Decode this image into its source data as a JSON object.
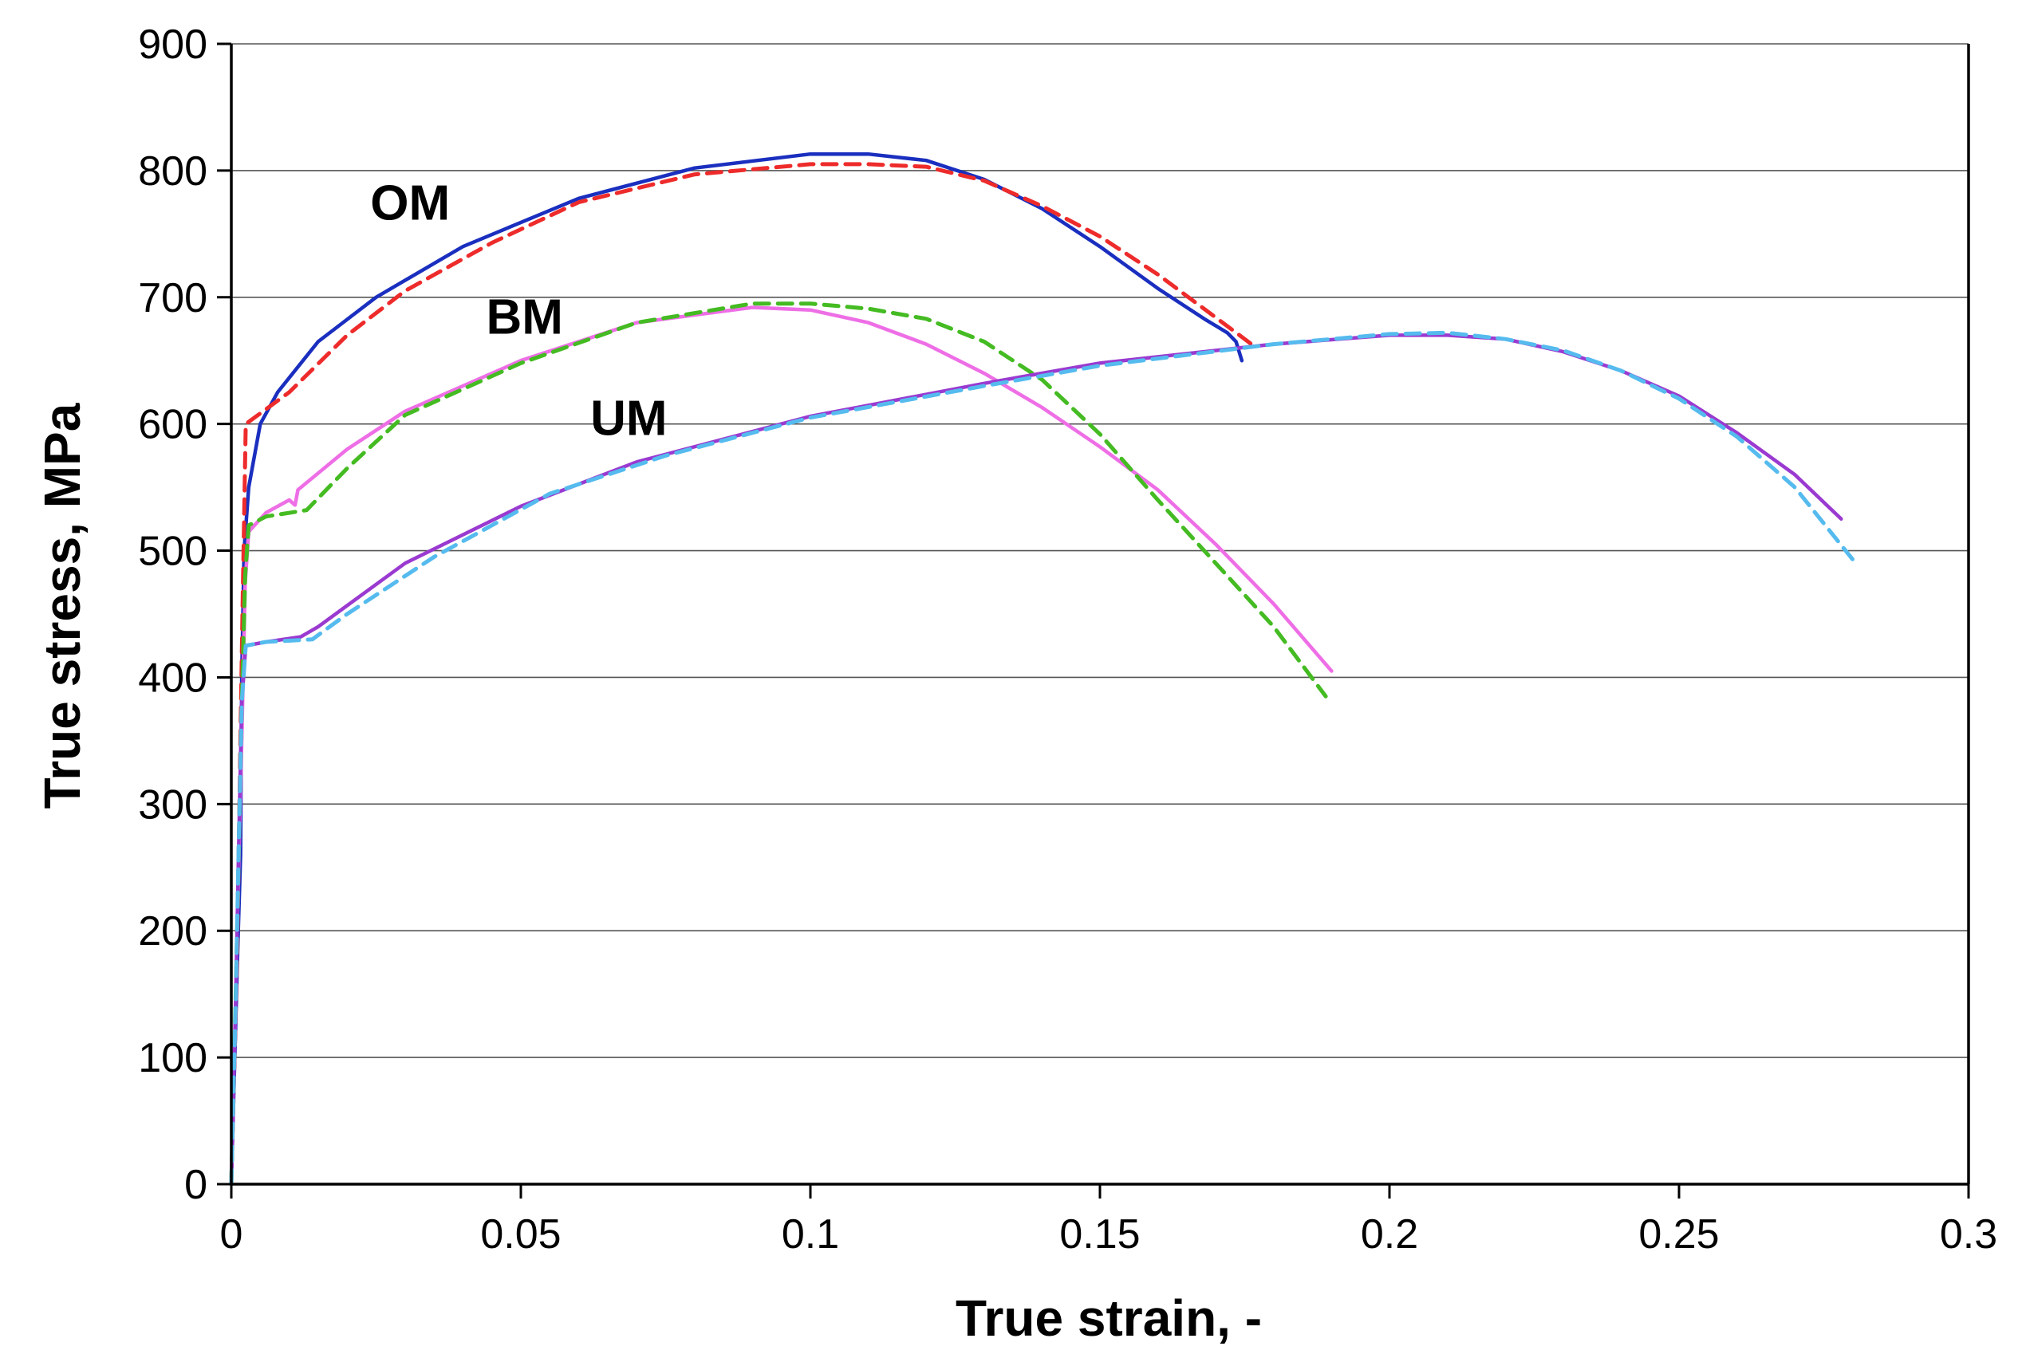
{
  "chart_data": {
    "type": "line",
    "title": "",
    "xlabel": "True strain, -",
    "ylabel": "True stress, MPa",
    "xlim": [
      0,
      0.3
    ],
    "ylim": [
      0,
      900
    ],
    "xticks": [
      0,
      0.05,
      0.1,
      0.15,
      0.2,
      0.25,
      0.3
    ],
    "xtick_labels": [
      "0",
      "0.05",
      "0.1",
      "0.15",
      "0.2",
      "0.25",
      "0.3"
    ],
    "yticks": [
      0,
      100,
      200,
      300,
      400,
      500,
      600,
      700,
      800,
      900
    ],
    "ytick_labels": [
      "0",
      "100",
      "200",
      "300",
      "400",
      "500",
      "600",
      "700",
      "800",
      "900"
    ],
    "grid": "horizontal",
    "legend": "none",
    "annotations": [
      {
        "text": "OM",
        "x": 0.024,
        "y": 775
      },
      {
        "text": "BM",
        "x": 0.044,
        "y": 685
      },
      {
        "text": "UM",
        "x": 0.062,
        "y": 605
      }
    ],
    "series": [
      {
        "group": "OM",
        "color": "#1a2fbf",
        "style": "solid",
        "points": [
          [
            0,
            0
          ],
          [
            0.0012,
            200
          ],
          [
            0.0016,
            260
          ],
          [
            0.0018,
            400
          ],
          [
            0.0022,
            500
          ],
          [
            0.003,
            550
          ],
          [
            0.005,
            600
          ],
          [
            0.008,
            625
          ],
          [
            0.015,
            665
          ],
          [
            0.025,
            700
          ],
          [
            0.04,
            740
          ],
          [
            0.06,
            778
          ],
          [
            0.08,
            802
          ],
          [
            0.1,
            813
          ],
          [
            0.11,
            813
          ],
          [
            0.12,
            808
          ],
          [
            0.13,
            793
          ],
          [
            0.14,
            770
          ],
          [
            0.15,
            740
          ],
          [
            0.16,
            707
          ],
          [
            0.168,
            683
          ],
          [
            0.172,
            672
          ],
          [
            0.1735,
            665
          ],
          [
            0.1745,
            650
          ]
        ]
      },
      {
        "group": "OM",
        "color": "#ee2b2b",
        "style": "dashed",
        "points": [
          [
            0,
            0
          ],
          [
            0.001,
            180
          ],
          [
            0.0015,
            330
          ],
          [
            0.002,
            470
          ],
          [
            0.0025,
            600
          ],
          [
            0.01,
            625
          ],
          [
            0.02,
            670
          ],
          [
            0.03,
            705
          ],
          [
            0.045,
            743
          ],
          [
            0.06,
            775
          ],
          [
            0.08,
            797
          ],
          [
            0.1,
            805
          ],
          [
            0.11,
            805
          ],
          [
            0.12,
            803
          ],
          [
            0.13,
            792
          ],
          [
            0.14,
            772
          ],
          [
            0.15,
            748
          ],
          [
            0.16,
            718
          ],
          [
            0.17,
            684
          ],
          [
            0.175,
            667
          ],
          [
            0.177,
            660
          ]
        ]
      },
      {
        "group": "BM",
        "color": "#ee6ee6",
        "style": "solid",
        "points": [
          [
            0,
            0
          ],
          [
            0.001,
            200
          ],
          [
            0.0018,
            350
          ],
          [
            0.0024,
            475
          ],
          [
            0.003,
            515
          ],
          [
            0.006,
            530
          ],
          [
            0.01,
            540
          ],
          [
            0.011,
            536
          ],
          [
            0.0115,
            548
          ],
          [
            0.02,
            580
          ],
          [
            0.03,
            610
          ],
          [
            0.05,
            650
          ],
          [
            0.07,
            680
          ],
          [
            0.09,
            692
          ],
          [
            0.1,
            690
          ],
          [
            0.11,
            680
          ],
          [
            0.12,
            663
          ],
          [
            0.13,
            640
          ],
          [
            0.14,
            613
          ],
          [
            0.15,
            582
          ],
          [
            0.16,
            548
          ],
          [
            0.17,
            505
          ],
          [
            0.18,
            458
          ],
          [
            0.19,
            405
          ]
        ]
      },
      {
        "group": "BM",
        "color": "#44bb22",
        "style": "dashed",
        "points": [
          [
            0,
            0
          ],
          [
            0.001,
            200
          ],
          [
            0.0018,
            380
          ],
          [
            0.0024,
            480
          ],
          [
            0.003,
            520
          ],
          [
            0.006,
            527
          ],
          [
            0.013,
            532
          ],
          [
            0.02,
            565
          ],
          [
            0.03,
            607
          ],
          [
            0.05,
            648
          ],
          [
            0.07,
            680
          ],
          [
            0.09,
            695
          ],
          [
            0.1,
            695
          ],
          [
            0.11,
            691
          ],
          [
            0.12,
            683
          ],
          [
            0.13,
            665
          ],
          [
            0.14,
            635
          ],
          [
            0.15,
            592
          ],
          [
            0.16,
            540
          ],
          [
            0.17,
            490
          ],
          [
            0.18,
            440
          ],
          [
            0.189,
            385
          ]
        ]
      },
      {
        "group": "UM",
        "color": "#9a3ad0",
        "style": "solid",
        "points": [
          [
            0,
            0
          ],
          [
            0.0008,
            150
          ],
          [
            0.0012,
            250
          ],
          [
            0.0018,
            380
          ],
          [
            0.0025,
            425
          ],
          [
            0.006,
            428
          ],
          [
            0.012,
            432
          ],
          [
            0.015,
            440
          ],
          [
            0.03,
            490
          ],
          [
            0.05,
            535
          ],
          [
            0.07,
            570
          ],
          [
            0.1,
            606
          ],
          [
            0.13,
            632
          ],
          [
            0.15,
            648
          ],
          [
            0.18,
            663
          ],
          [
            0.2,
            670
          ],
          [
            0.21,
            670
          ],
          [
            0.22,
            667
          ],
          [
            0.23,
            657
          ],
          [
            0.24,
            642
          ],
          [
            0.25,
            622
          ],
          [
            0.26,
            593
          ],
          [
            0.27,
            560
          ],
          [
            0.278,
            525
          ]
        ]
      },
      {
        "group": "UM",
        "color": "#55bbee",
        "style": "dashed",
        "points": [
          [
            0,
            0
          ],
          [
            0.0008,
            150
          ],
          [
            0.0012,
            250
          ],
          [
            0.0018,
            380
          ],
          [
            0.0025,
            425
          ],
          [
            0.006,
            428
          ],
          [
            0.014,
            430
          ],
          [
            0.02,
            450
          ],
          [
            0.035,
            495
          ],
          [
            0.055,
            545
          ],
          [
            0.075,
            575
          ],
          [
            0.1,
            605
          ],
          [
            0.13,
            630
          ],
          [
            0.15,
            646
          ],
          [
            0.18,
            663
          ],
          [
            0.2,
            671
          ],
          [
            0.21,
            672
          ],
          [
            0.22,
            667
          ],
          [
            0.23,
            658
          ],
          [
            0.24,
            642
          ],
          [
            0.25,
            620
          ],
          [
            0.26,
            590
          ],
          [
            0.27,
            550
          ],
          [
            0.28,
            493
          ]
        ]
      }
    ]
  }
}
